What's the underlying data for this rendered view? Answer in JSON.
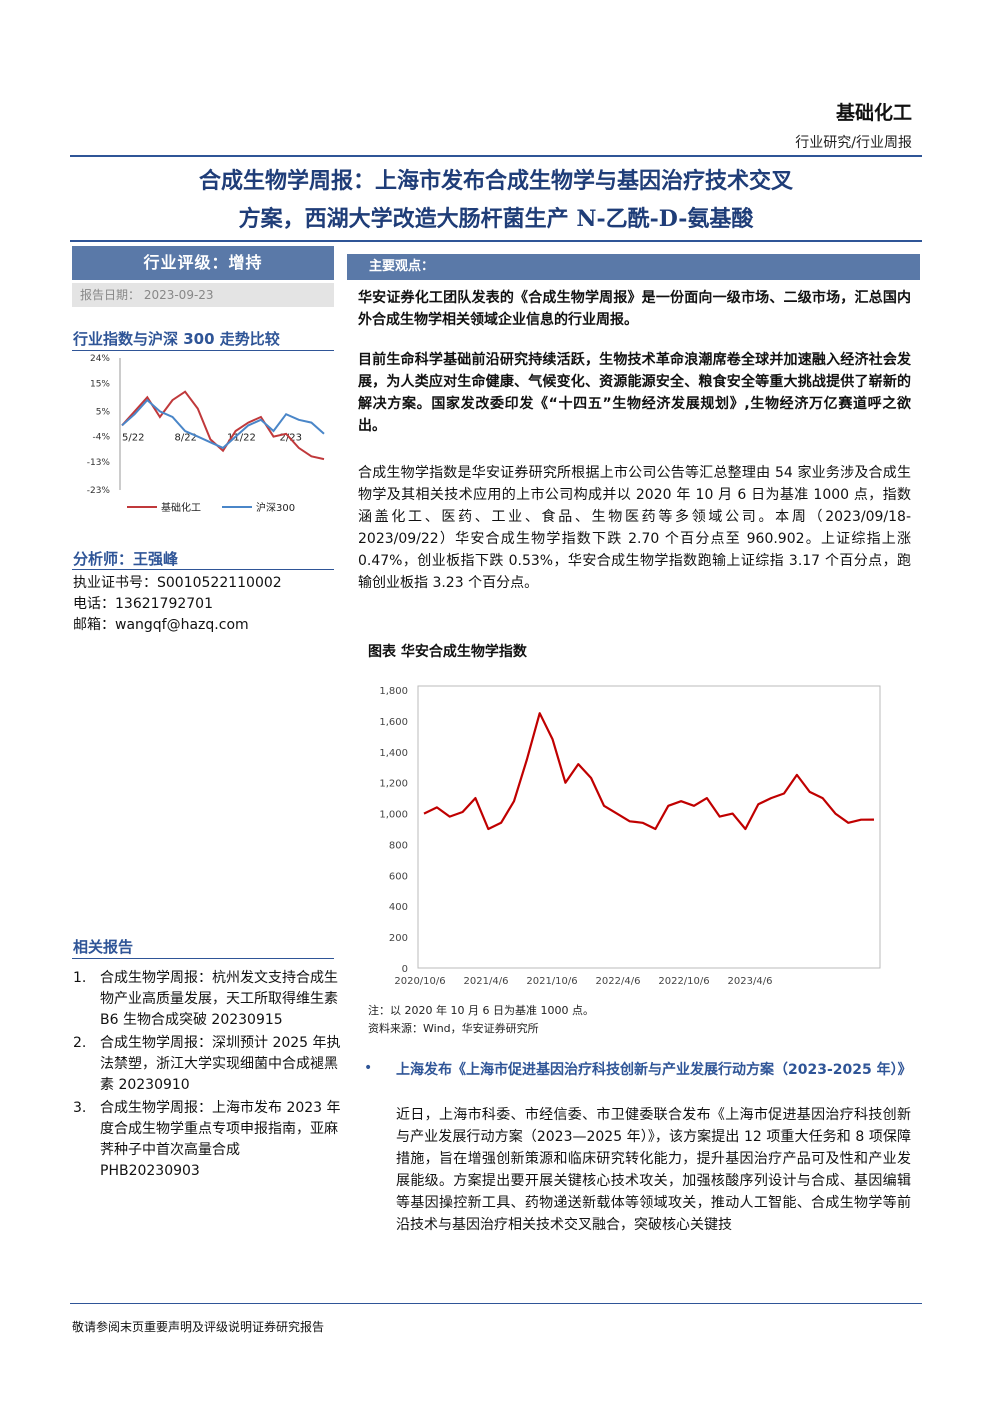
{
  "header": {
    "sector": "基础化工",
    "report_type": "行业研究/行业周报"
  },
  "title": {
    "line1": "合成生物学周报：上海市发布合成生物学与基因治疗技术交叉",
    "line2": "方案，西湖大学改造大肠杆菌生产 N-乙酰-D-氨基酸"
  },
  "sidebar": {
    "rating": "行业评级：增持",
    "date": "报告日期：  2023-09-23",
    "index_chart_title": "行业指数与沪深 300 走势比较",
    "analyst_heading": "分析师：王强峰",
    "analyst_lines": [
      "执业证书号：S0010522110002",
      "电话：13621792701",
      "邮箱：wangqf@hazq.com"
    ],
    "related_heading": "相关报告",
    "related_reports": [
      {
        "num": "1.",
        "text": "合成生物学周报：杭州发文支持合成生物产业高质量发展，天工所取得维生素 B6 生物合成突破 20230915"
      },
      {
        "num": "2.",
        "text": "合成生物学周报：深圳预计 2025 年执法禁塑，浙江大学实现细菌中合成褪黑素 20230910"
      },
      {
        "num": "3.",
        "text": "合成生物学周报：上海市发布 2023 年度合成生物学重点专项申报指南，亚麻荠种子中首次高量合成 PHB20230903"
      }
    ]
  },
  "main": {
    "views_label": "主要观点：",
    "para1": "华安证券化工团队发表的《合成生物学周报》是一份面向一级市场、二级市场，汇总国内外合成生物学相关领域企业信息的行业周报。",
    "para2": "目前生命科学基础前沿研究持续活跃，生物技术革命浪潮席卷全球并加速融入经济社会发展，为人类应对生命健康、气候变化、资源能源安全、粮食安全等重大挑战提供了崭新的解决方案。国家发改委印发《“十四五”生物经济发展规划》,生物经济万亿赛道呼之欲出。",
    "para3": "合成生物学指数是华安证券研究所根据上市公司公告等汇总整理由 54 家业务涉及合成生物学及其相关技术应用的上市公司构成并以 2020 年 10 月 6 日为基准 1000 点，指数涵盖化工、医药、工业、食品、生物医药等多领域公司。本周（2023/09/18-2023/09/22）华安合成生物学指数下跌 2.70 个百分点至 960.902。上证综指上涨 0.47%，创业板指下跌 0.53%，华安合成生物学指数跑输上证综指 3.17 个百分点，跑输创业板指 3.23 个百分点。",
    "chart_caption": "图表 华安合成生物学指数",
    "chart_note": "注：以 2020 年 10 月 6 日为基准 1000 点。",
    "chart_source": "资料来源：Wind，华安证券研究所",
    "bullet_title": "上海发布《上海市促进基因治疗科技创新与产业发展行动方案（2023-2025 年）》",
    "bullet_body": "近日，上海市科委、市经信委、市卫健委联合发布《上海市促进基因治疗科技创新与产业发展行动方案（2023—2025 年）》，该方案提出 12 项重大任务和 8 项保障措施，旨在增强创新策源和临床研究转化能力，提升基因治疗产品可及性和产业发展能级。方案提出要开展关键核心技术攻关，加强核酸序列设计与合成、基因编辑等基因操控新工具、药物递送新载体等领域攻关，推动人工智能、合成生物学等前沿技术与基因治疗相关技术交叉融合，突破核心关键技"
  },
  "footer": {
    "text": "敬请参阅末页重要声明及评级说明证券研究报告"
  },
  "chart_data": [
    {
      "type": "line",
      "title": "行业指数与沪深 300 走势比较",
      "x_ticks": [
        "5/22",
        "8/22",
        "11/22",
        "2/23"
      ],
      "y_ticks": [
        "24%",
        "15%",
        "5%",
        "-4%",
        "-13%",
        "-23%"
      ],
      "ylim": [
        -23,
        24
      ],
      "legend_position": "bottom",
      "x": [
        0,
        1,
        2,
        3,
        4,
        5,
        6,
        7,
        8,
        9,
        10,
        11,
        12,
        13,
        14,
        15,
        16
      ],
      "series": [
        {
          "name": "基础化工",
          "color": "#c0393b",
          "values": [
            0,
            5,
            10,
            3,
            9,
            12,
            6,
            -5,
            -9,
            -2,
            1,
            3,
            -4,
            -3,
            -8,
            -11,
            -12
          ]
        },
        {
          "name": "沪深300",
          "color": "#4a86c8",
          "values": [
            0,
            4,
            9,
            5,
            3,
            -2,
            -4,
            -6,
            -8,
            -4,
            0,
            2,
            -2,
            4,
            2,
            1,
            -3
          ]
        }
      ]
    },
    {
      "type": "line",
      "title": "图表 华安合成生物学指数",
      "x_ticks": [
        "2020/10/6",
        "2021/4/6",
        "2021/10/6",
        "2022/4/6",
        "2022/10/6",
        "2023/4/6"
      ],
      "y_ticks": [
        "0",
        "200",
        "400",
        "600",
        "800",
        "1,000",
        "1,200",
        "1,400",
        "1,600",
        "1,800"
      ],
      "ylim": [
        0,
        1800
      ],
      "grid": false,
      "x": [
        "2020/10",
        "2020/11",
        "2020/12",
        "2021/1",
        "2021/2",
        "2021/3",
        "2021/4",
        "2021/5",
        "2021/6",
        "2021/7",
        "2021/8",
        "2021/9",
        "2021/10",
        "2021/11",
        "2021/12",
        "2022/1",
        "2022/2",
        "2022/3",
        "2022/4",
        "2022/5",
        "2022/6",
        "2022/7",
        "2022/8",
        "2022/9",
        "2022/10",
        "2022/11",
        "2022/12",
        "2023/1",
        "2023/2",
        "2023/3",
        "2023/4",
        "2023/5",
        "2023/6",
        "2023/7",
        "2023/8",
        "2023/9"
      ],
      "series": [
        {
          "name": "华安合成生物学指数",
          "color": "#c00000",
          "values": [
            1000,
            1040,
            980,
            1010,
            1100,
            900,
            940,
            1080,
            1350,
            1650,
            1480,
            1200,
            1320,
            1230,
            1050,
            1000,
            950,
            940,
            900,
            1050,
            1080,
            1050,
            1100,
            980,
            1000,
            900,
            1060,
            1100,
            1130,
            1250,
            1140,
            1100,
            1000,
            940,
            960,
            961
          ]
        }
      ]
    }
  ]
}
